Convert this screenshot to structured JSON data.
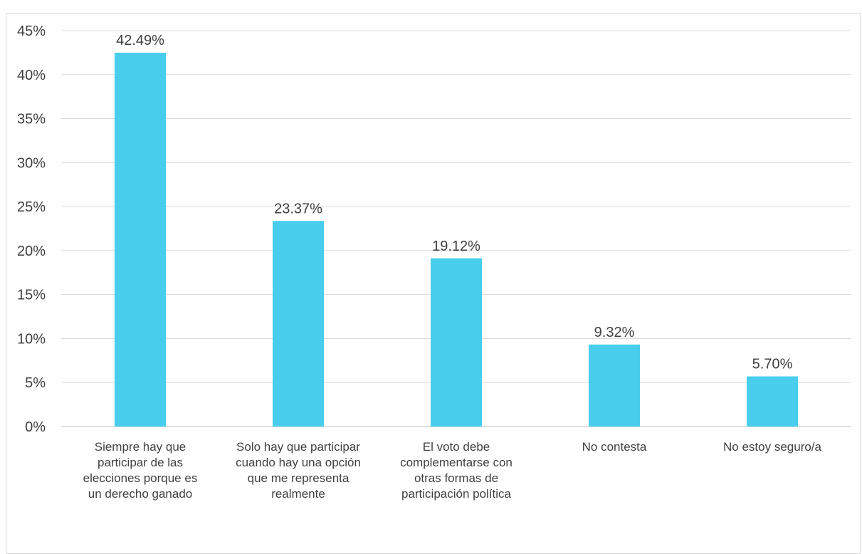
{
  "chart_data": {
    "type": "bar",
    "title": "",
    "xlabel": "",
    "ylabel": "",
    "ylim": [
      0,
      45
    ],
    "y_ticks": [
      "0%",
      "5%",
      "10%",
      "15%",
      "20%",
      "25%",
      "30%",
      "35%",
      "40%",
      "45%"
    ],
    "grid": true,
    "bar_color": "#48cdec",
    "categories": [
      [
        "Siempre hay que",
        "participar de las",
        "elecciones porque es",
        "un derecho ganado"
      ],
      [
        "Solo hay que participar",
        "cuando hay una opción",
        "que me representa",
        "realmente"
      ],
      [
        "El voto debe",
        "complementarse con",
        "otras formas de",
        "participación política"
      ],
      [
        "No contesta"
      ],
      [
        "No estoy seguro/a"
      ]
    ],
    "values": [
      42.49,
      23.37,
      19.12,
      9.32,
      5.7
    ],
    "data_labels": [
      "42.49%",
      "23.37%",
      "19.12%",
      "9.32%",
      "5.70%"
    ]
  }
}
